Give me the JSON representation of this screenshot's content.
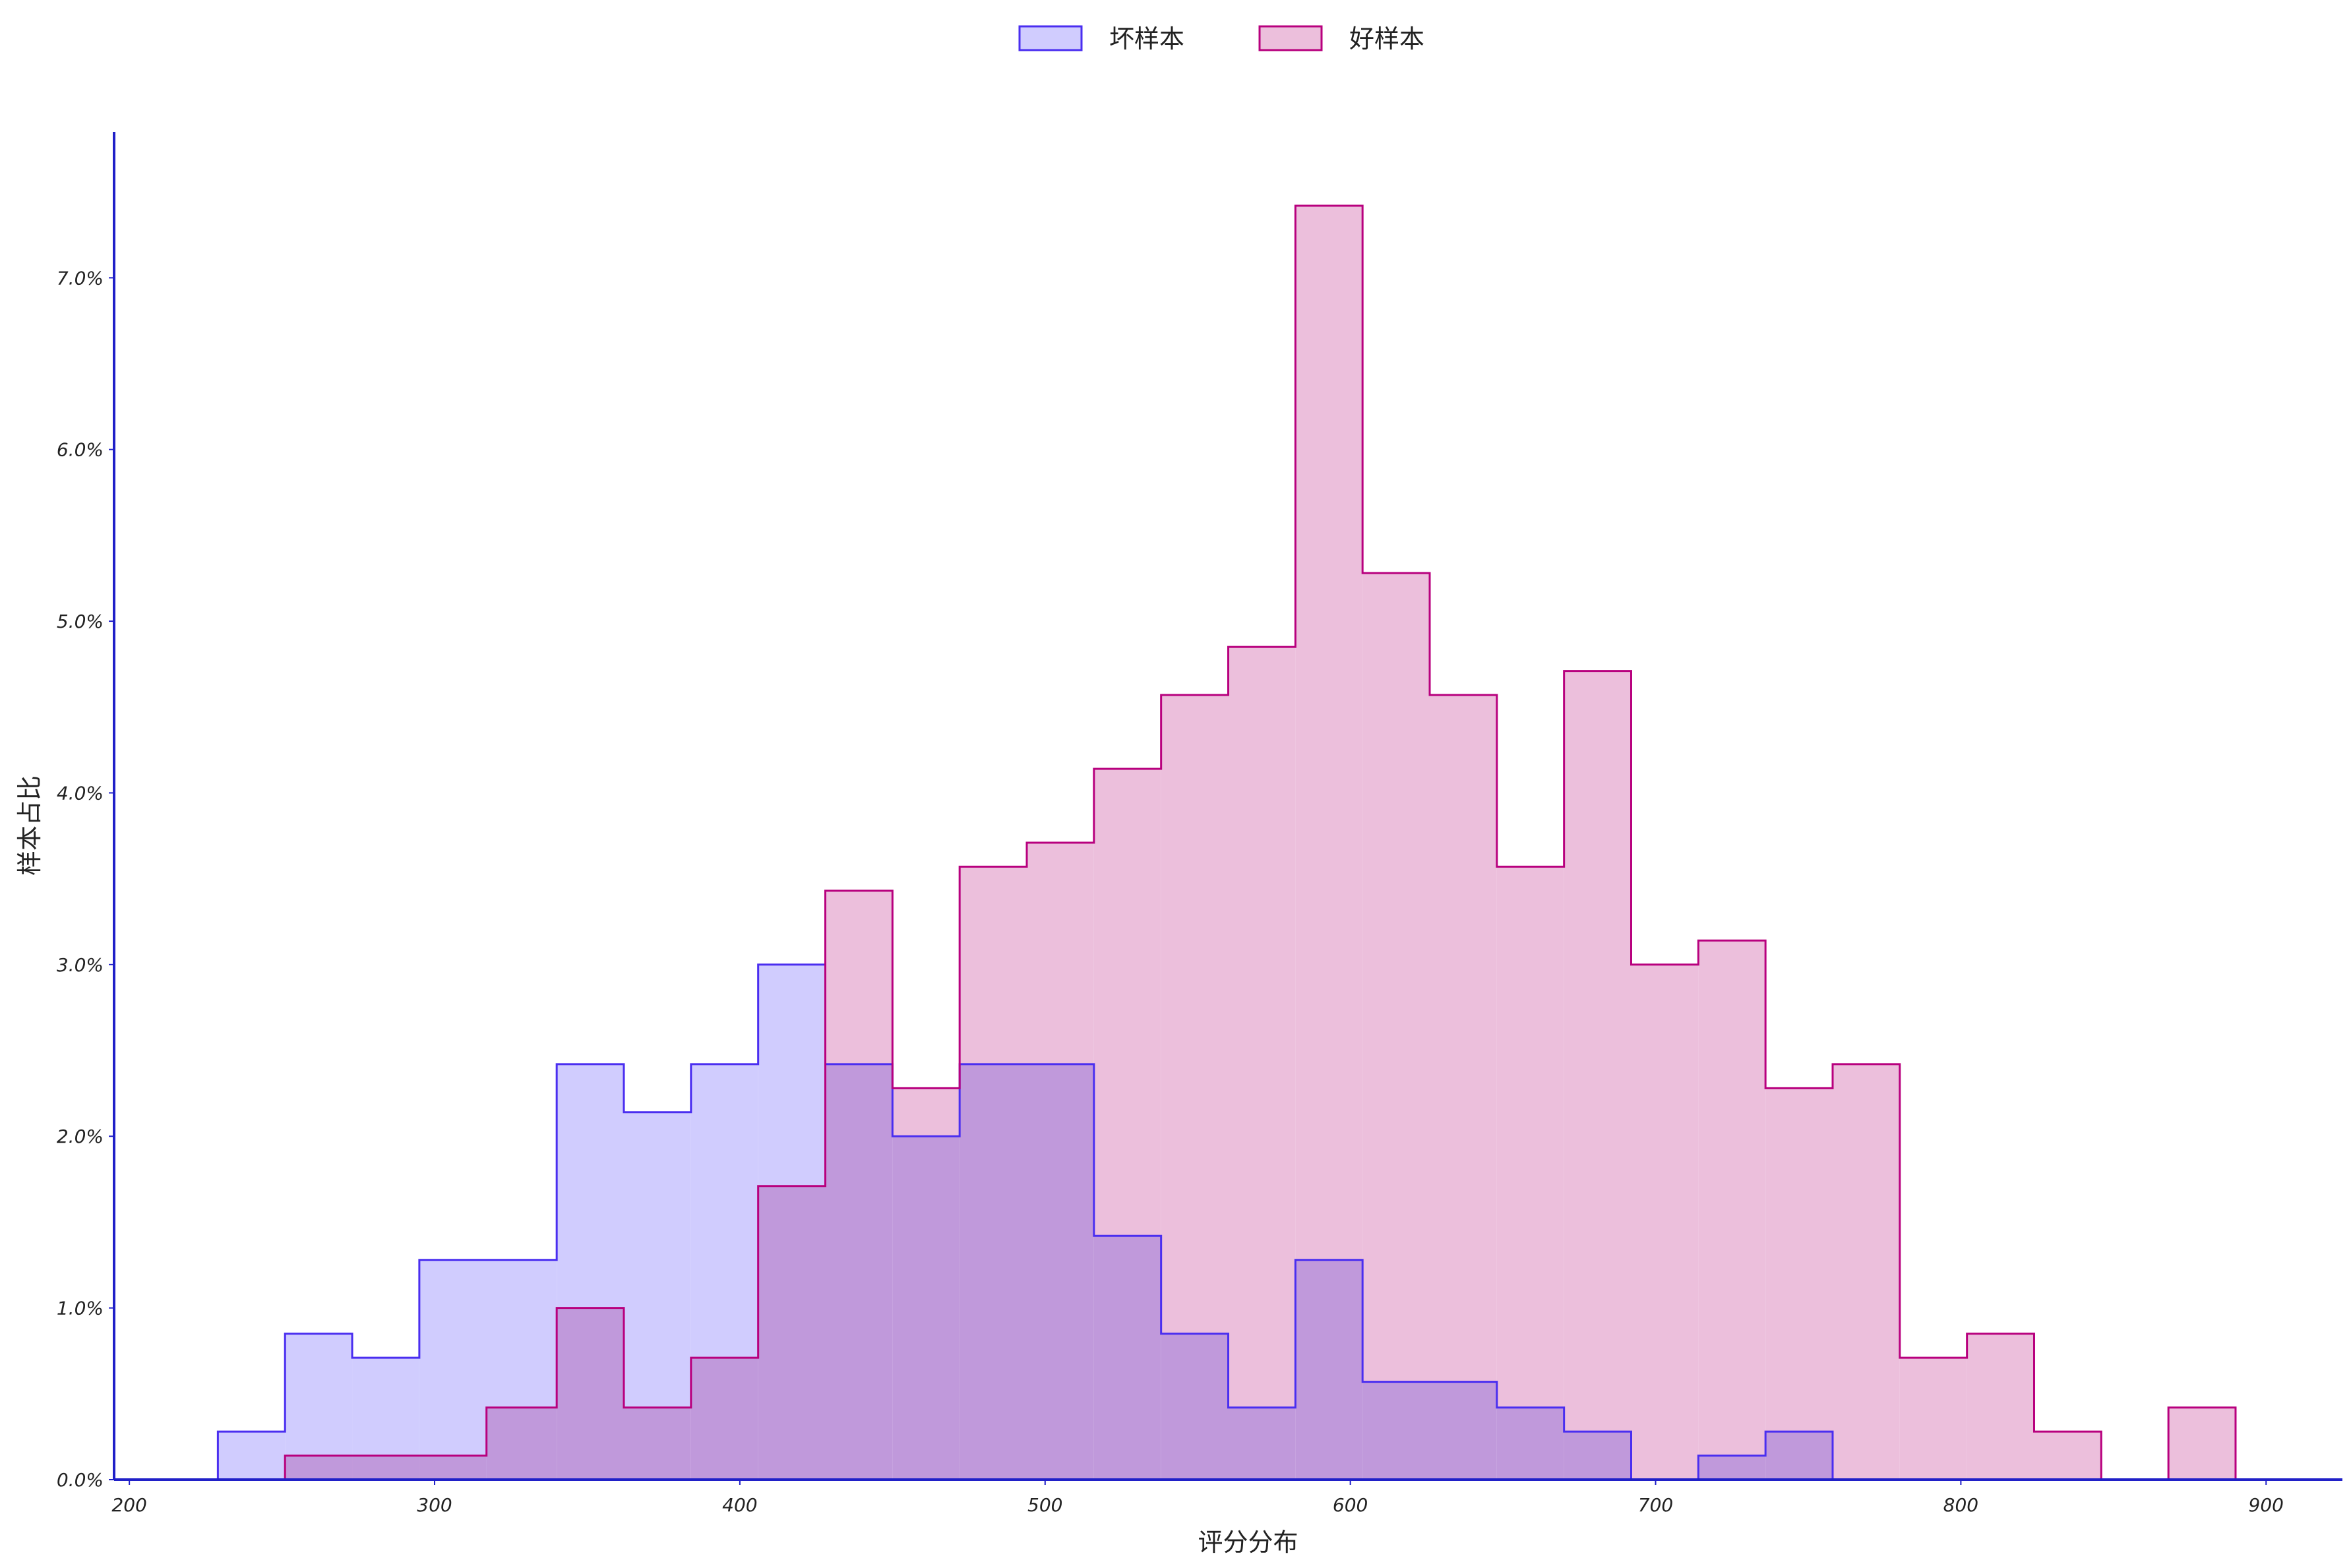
{
  "chart_data": {
    "type": "histogram",
    "xlabel": "评分分布",
    "ylabel": "样本占比",
    "xlim": [
      195,
      925
    ],
    "ylim": [
      0,
      0.0785
    ],
    "x_ticks": [
      {
        "value": 200,
        "label": "200"
      },
      {
        "value": 300,
        "label": "300"
      },
      {
        "value": 400,
        "label": "400"
      },
      {
        "value": 500,
        "label": "500"
      },
      {
        "value": 600,
        "label": "600"
      },
      {
        "value": 700,
        "label": "700"
      },
      {
        "value": 800,
        "label": "800"
      },
      {
        "value": 900,
        "label": "900"
      }
    ],
    "y_ticks": [
      {
        "value": 0.0,
        "label": "0.0%"
      },
      {
        "value": 0.01,
        "label": "1.0%"
      },
      {
        "value": 0.02,
        "label": "2.0%"
      },
      {
        "value": 0.03,
        "label": "3.0%"
      },
      {
        "value": 0.04,
        "label": "4.0%"
      },
      {
        "value": 0.05,
        "label": "5.0%"
      },
      {
        "value": 0.06,
        "label": "6.0%"
      },
      {
        "value": 0.07,
        "label": "7.0%"
      }
    ],
    "legend_position": "top-center",
    "series": [
      {
        "name": "坏样本",
        "fill": "#d0ccfe",
        "stroke": "#4a2ef0",
        "bins": [
          {
            "x0": 229,
            "x1": 251,
            "value": 0.0028
          },
          {
            "x0": 251,
            "x1": 273,
            "value": 0.0085
          },
          {
            "x0": 273,
            "x1": 295,
            "value": 0.0071
          },
          {
            "x0": 295,
            "x1": 340,
            "value": 0.0128
          },
          {
            "x0": 340,
            "x1": 362,
            "value": 0.0242
          },
          {
            "x0": 362,
            "x1": 384,
            "value": 0.0214
          },
          {
            "x0": 384,
            "x1": 406,
            "value": 0.0242
          },
          {
            "x0": 406,
            "x1": 428,
            "value": 0.03
          },
          {
            "x0": 428,
            "x1": 450,
            "value": 0.0242
          },
          {
            "x0": 450,
            "x1": 472,
            "value": 0.02
          },
          {
            "x0": 472,
            "x1": 516,
            "value": 0.0242
          },
          {
            "x0": 516,
            "x1": 538,
            "value": 0.0142
          },
          {
            "x0": 538,
            "x1": 560,
            "value": 0.0085
          },
          {
            "x0": 560,
            "x1": 582,
            "value": 0.0042
          },
          {
            "x0": 582,
            "x1": 604,
            "value": 0.0128
          },
          {
            "x0": 604,
            "x1": 648,
            "value": 0.0057
          },
          {
            "x0": 648,
            "x1": 670,
            "value": 0.0042
          },
          {
            "x0": 670,
            "x1": 692,
            "value": 0.0028
          },
          {
            "x0": 692,
            "x1": 714,
            "value": 0.0
          },
          {
            "x0": 714,
            "x1": 736,
            "value": 0.0014
          },
          {
            "x0": 736,
            "x1": 758,
            "value": 0.0028
          }
        ]
      },
      {
        "name": "好样本",
        "fill": "#ecbfdc",
        "stroke": "#b8007e",
        "bins": [
          {
            "x0": 251,
            "x1": 317,
            "value": 0.0014
          },
          {
            "x0": 317,
            "x1": 340,
            "value": 0.0042
          },
          {
            "x0": 340,
            "x1": 362,
            "value": 0.01
          },
          {
            "x0": 362,
            "x1": 384,
            "value": 0.0042
          },
          {
            "x0": 384,
            "x1": 406,
            "value": 0.0071
          },
          {
            "x0": 406,
            "x1": 428,
            "value": 0.0171
          },
          {
            "x0": 428,
            "x1": 450,
            "value": 0.0343
          },
          {
            "x0": 450,
            "x1": 472,
            "value": 0.0228
          },
          {
            "x0": 472,
            "x1": 494,
            "value": 0.0357
          },
          {
            "x0": 494,
            "x1": 516,
            "value": 0.0371
          },
          {
            "x0": 516,
            "x1": 538,
            "value": 0.0414
          },
          {
            "x0": 538,
            "x1": 560,
            "value": 0.0457
          },
          {
            "x0": 560,
            "x1": 582,
            "value": 0.0485
          },
          {
            "x0": 582,
            "x1": 604,
            "value": 0.0742
          },
          {
            "x0": 604,
            "x1": 626,
            "value": 0.0528
          },
          {
            "x0": 626,
            "x1": 648,
            "value": 0.0457
          },
          {
            "x0": 648,
            "x1": 670,
            "value": 0.0357
          },
          {
            "x0": 670,
            "x1": 692,
            "value": 0.0471
          },
          {
            "x0": 692,
            "x1": 714,
            "value": 0.03
          },
          {
            "x0": 714,
            "x1": 736,
            "value": 0.0314
          },
          {
            "x0": 736,
            "x1": 758,
            "value": 0.0228
          },
          {
            "x0": 758,
            "x1": 780,
            "value": 0.0242
          },
          {
            "x0": 780,
            "x1": 802,
            "value": 0.0071
          },
          {
            "x0": 802,
            "x1": 824,
            "value": 0.0085
          },
          {
            "x0": 824,
            "x1": 846,
            "value": 0.0028
          },
          {
            "x0": 846,
            "x1": 868,
            "value": 0.0
          },
          {
            "x0": 868,
            "x1": 890,
            "value": 0.0042
          }
        ]
      }
    ]
  }
}
